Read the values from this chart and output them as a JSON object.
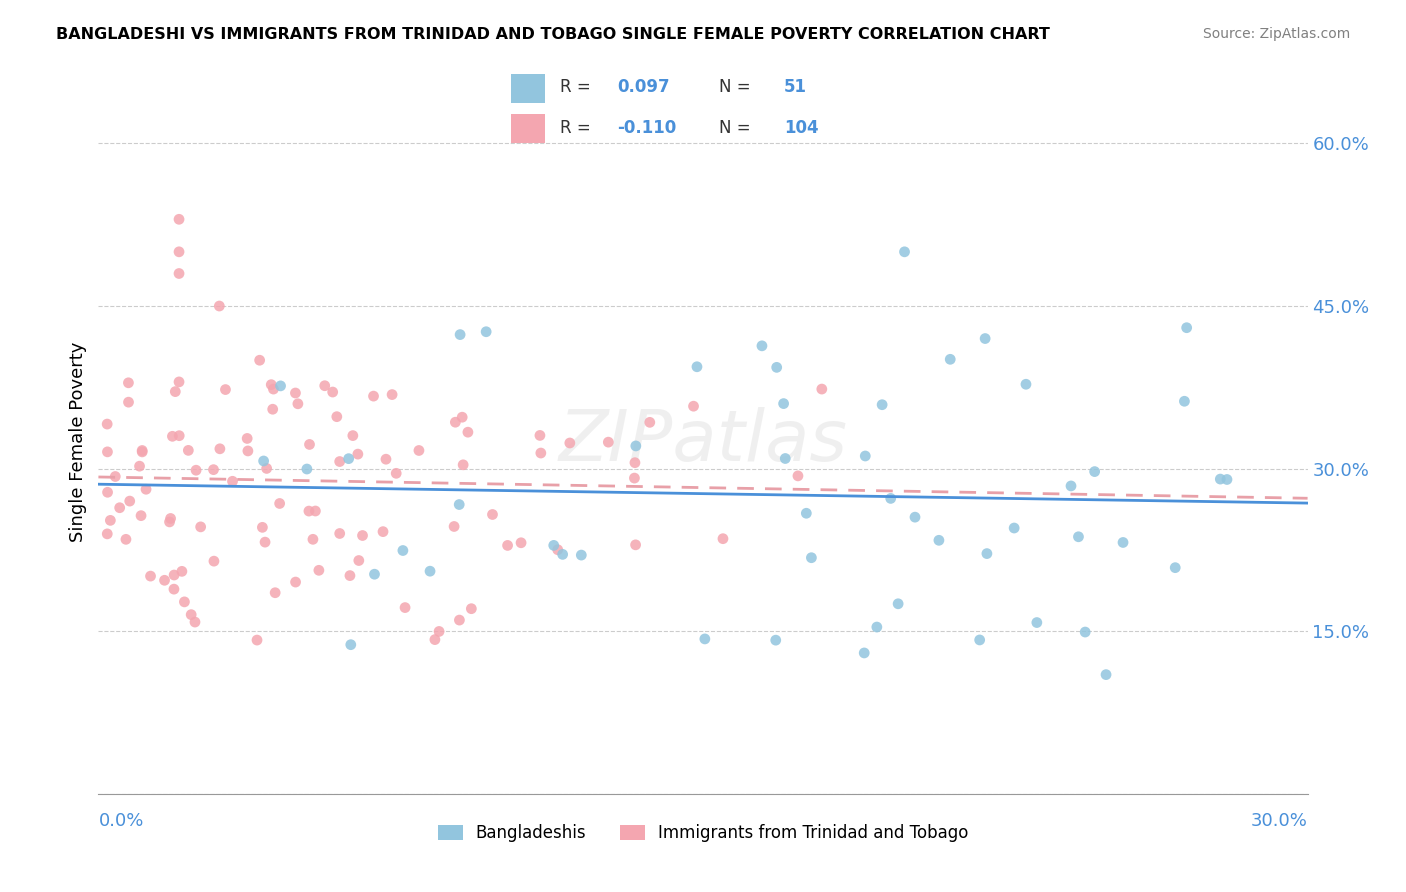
{
  "title": "BANGLADESHI VS IMMIGRANTS FROM TRINIDAD AND TOBAGO SINGLE FEMALE POVERTY CORRELATION CHART",
  "source": "Source: ZipAtlas.com",
  "ylabel": "Single Female Poverty",
  "right_yticklabels": [
    "",
    "15.0%",
    "30.0%",
    "45.0%",
    "60.0%"
  ],
  "right_ytick_vals": [
    0.0,
    0.15,
    0.3,
    0.45,
    0.6
  ],
  "xlim": [
    0.0,
    0.3
  ],
  "ylim": [
    0.0,
    0.65
  ],
  "watermark": "ZIPatlas",
  "color_blue": "#92c5de",
  "color_pink": "#f4a6b0",
  "line_blue": "#4a90d9",
  "line_pink": "#e8a0a8",
  "background": "#ffffff",
  "grid_color": "#cccccc"
}
